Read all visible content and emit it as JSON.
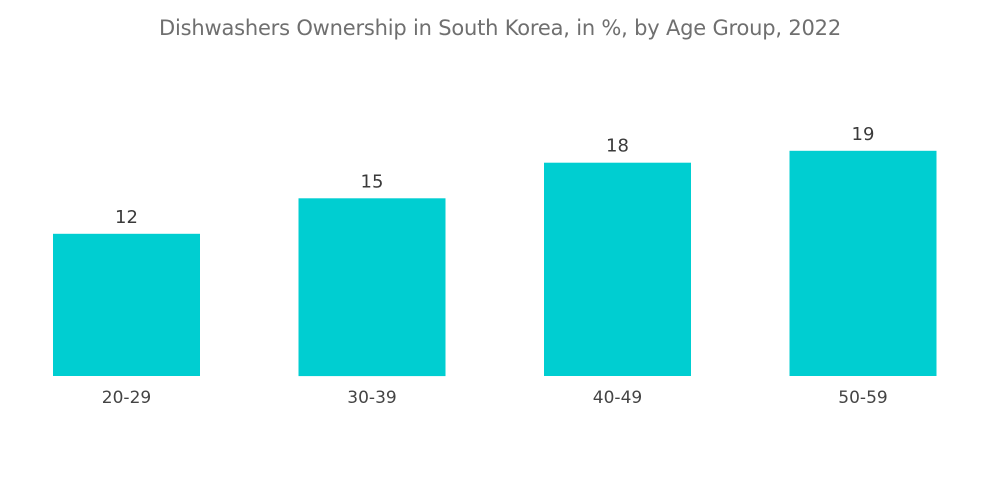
{
  "chart_data": {
    "type": "bar",
    "title": "Dishwashers Ownership in South Korea, in %, by Age Group, 2022",
    "xlabel": "",
    "ylabel": "",
    "categories": [
      "20-29",
      "30-39",
      "40-49",
      "50-59"
    ],
    "values": [
      12,
      15,
      18,
      19
    ],
    "ylim": [
      0,
      20
    ],
    "grid": false,
    "legend": "none",
    "bar_color": "#00ced1"
  }
}
